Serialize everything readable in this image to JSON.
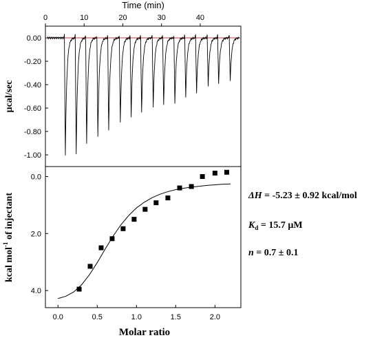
{
  "chart_data": [
    {
      "type": "line",
      "panel": "raw-thermogram",
      "top_axis_label": "Time (min)",
      "top_ticks": [
        0,
        10,
        20,
        30,
        40
      ],
      "xlim": [
        0,
        50.5
      ],
      "ylabel": "µcal/sec",
      "y_ticks": [
        "0.00",
        "-0.20",
        "-0.40",
        "-0.60",
        "-0.80",
        "-1.00"
      ],
      "y_tick_values": [
        0.0,
        -0.2,
        -0.4,
        -0.6,
        -0.8,
        -1.0
      ],
      "ylim": [
        -1.1,
        0.1
      ],
      "baseline_color": "#cc3333",
      "trace_color": "#000000",
      "injection_times": [
        4.9,
        7.7,
        10.4,
        13.3,
        16.1,
        19.1,
        21.9,
        24.6,
        27.6,
        30.3,
        33.2,
        36.0,
        38.8,
        41.8,
        44.5,
        47.5
      ],
      "peak_values": [
        -1.0,
        -1.0,
        -0.91,
        -0.84,
        -0.79,
        -0.73,
        -0.68,
        -0.64,
        -0.6,
        -0.58,
        -0.56,
        -0.51,
        -0.47,
        -0.41,
        -0.39,
        -0.37
      ]
    },
    {
      "type": "scatter",
      "panel": "binding-isotherm",
      "xlabel": "Molar ratio",
      "ylabel": "kcal mol",
      "ylabel_sup": "-1",
      "ylabel_rest": " of injectant",
      "x_ticks": [
        "0.0",
        "0.5",
        "1.0",
        "1.5",
        "2.0"
      ],
      "x_tick_values": [
        0.0,
        0.5,
        1.0,
        1.5,
        2.0
      ],
      "y_ticks": [
        "0.0",
        "2.0",
        "4.0"
      ],
      "y_tick_values": [
        0.0,
        -2.0,
        -4.0
      ],
      "xlim": [
        -0.16,
        2.33
      ],
      "ylim": [
        -4.6,
        0.35
      ],
      "marker_color": "#000000",
      "x": [
        0.27,
        0.41,
        0.55,
        0.69,
        0.83,
        0.97,
        1.11,
        1.25,
        1.4,
        1.55,
        1.7,
        1.84,
        2.0,
        2.15
      ],
      "y": [
        -3.95,
        -3.15,
        -2.5,
        -2.18,
        -1.83,
        -1.5,
        -1.15,
        -0.92,
        -0.75,
        -0.4,
        -0.35,
        0.0,
        0.12,
        0.15
      ],
      "fit_x": [
        0.0,
        0.1,
        0.2,
        0.3,
        0.4,
        0.5,
        0.6,
        0.7,
        0.8,
        0.9,
        1.0,
        1.1,
        1.2,
        1.3,
        1.4,
        1.5,
        1.6,
        1.7,
        1.8,
        1.9,
        2.0,
        2.1,
        2.2
      ],
      "fit_y": [
        -4.28,
        -4.2,
        -4.05,
        -3.8,
        -3.45,
        -3.02,
        -2.55,
        -2.1,
        -1.7,
        -1.37,
        -1.1,
        -0.9,
        -0.74,
        -0.62,
        -0.53,
        -0.46,
        -0.41,
        -0.37,
        -0.34,
        -0.31,
        -0.29,
        -0.27,
        -0.26
      ]
    }
  ],
  "annotations": {
    "dh_symbol": "ΔH",
    "dh_value": " = -5.23 ± 0.92 kcal/mol",
    "kd_symbol": "K",
    "kd_sub": "d",
    "kd_value": " = 15.7 µM",
    "n_symbol": "n",
    "n_value": " = 0.7 ± 0.1"
  }
}
